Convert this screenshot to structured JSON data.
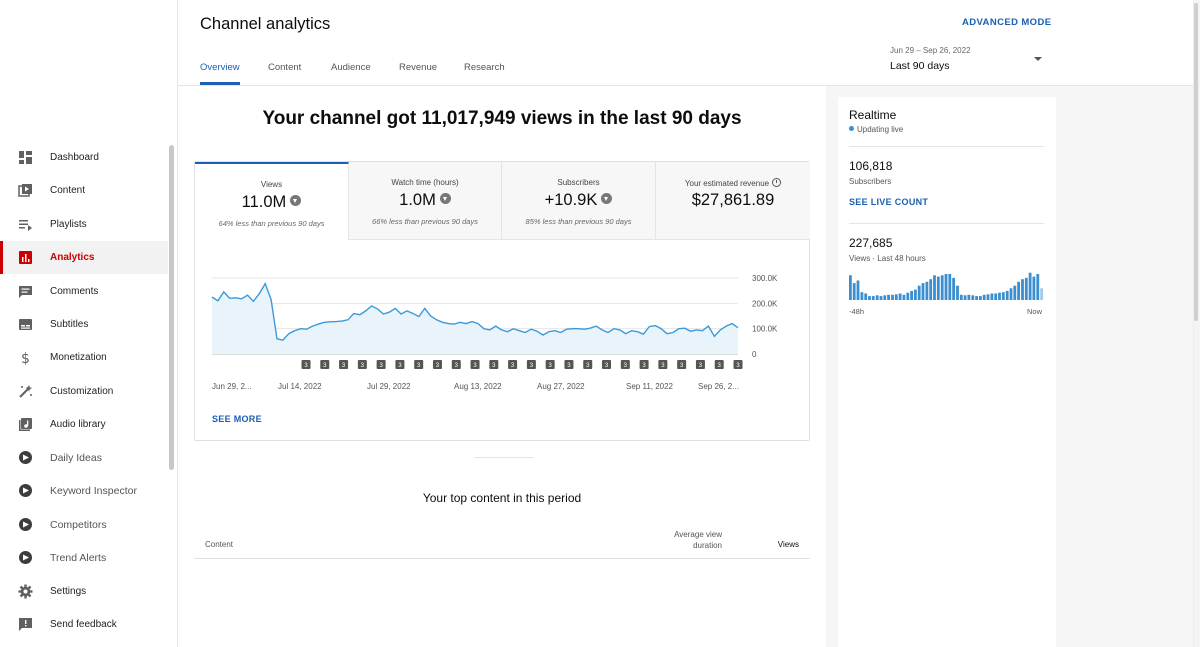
{
  "sidebar": {
    "items": [
      {
        "label": "Dashboard",
        "icon": "dashboard-icon"
      },
      {
        "label": "Content",
        "icon": "content-icon"
      },
      {
        "label": "Playlists",
        "icon": "playlists-icon"
      },
      {
        "label": "Analytics",
        "icon": "analytics-icon",
        "active": true
      },
      {
        "label": "Comments",
        "icon": "comments-icon"
      },
      {
        "label": "Subtitles",
        "icon": "subtitles-icon"
      },
      {
        "label": "Monetization",
        "icon": "monetization-icon"
      },
      {
        "label": "Customization",
        "icon": "customization-icon"
      },
      {
        "label": "Audio library",
        "icon": "audio-library-icon"
      },
      {
        "label": "Daily Ideas",
        "icon": "extension-logo-icon",
        "ext": true
      },
      {
        "label": "Keyword Inspector",
        "icon": "extension-logo-icon",
        "ext": true
      },
      {
        "label": "Competitors",
        "icon": "extension-logo-icon",
        "ext": true
      },
      {
        "label": "Trend Alerts",
        "icon": "extension-logo-icon",
        "ext": true
      },
      {
        "label": "Settings",
        "icon": "gear-icon"
      },
      {
        "label": "Send feedback",
        "icon": "feedback-icon"
      }
    ]
  },
  "header": {
    "title": "Channel analytics",
    "advanced_mode": "ADVANCED MODE",
    "tabs": [
      {
        "label": "Overview",
        "active": true
      },
      {
        "label": "Content"
      },
      {
        "label": "Audience"
      },
      {
        "label": "Revenue"
      },
      {
        "label": "Research"
      }
    ],
    "date_range": "Jun 29 – Sep 26, 2022",
    "date_preset": "Last 90 days"
  },
  "headline": "Your channel got 11,017,949 views in the last 90 days",
  "metrics": [
    {
      "label": "Views",
      "value": "11.0M",
      "sub": "64% less than previous 90 days",
      "trend": "down"
    },
    {
      "label": "Watch time (hours)",
      "value": "1.0M",
      "sub": "66% less than previous 90 days",
      "trend": "down"
    },
    {
      "label": "Subscribers",
      "value": "+10.9K",
      "sub": "85% less than previous 90 days",
      "trend": "down"
    },
    {
      "label": "Your estimated revenue",
      "value": "$27,861.89",
      "sub": "",
      "trend": "none"
    }
  ],
  "chart_data": {
    "type": "area",
    "ylim": [
      0,
      300000
    ],
    "y_ticks": [
      "0",
      "100.0K",
      "200.0K",
      "300.0K"
    ],
    "x_ticks": [
      "Jun 29, 2...",
      "Jul 14, 2022",
      "Jul 29, 2022",
      "Aug 13, 2022",
      "Aug 27, 2022",
      "Sep 11, 2022",
      "Sep 26, 2..."
    ],
    "series": [
      {
        "values": [
          225000,
          210000,
          245000,
          220000,
          222000,
          218000,
          232000,
          208000,
          238000,
          278000,
          215000,
          60000,
          55000,
          80000,
          92000,
          100000,
          98000,
          110000,
          118000,
          125000,
          127000,
          128000,
          130000,
          135000,
          160000,
          155000,
          170000,
          190000,
          178000,
          158000,
          165000,
          180000,
          158000,
          170000,
          160000,
          148000,
          180000,
          150000,
          135000,
          125000,
          120000,
          118000,
          125000,
          120000,
          128000,
          120000,
          100000,
          95000,
          110000,
          95000,
          88000,
          100000,
          92000,
          85000,
          98000,
          90000,
          75000,
          88000,
          92000,
          85000,
          98000,
          100000,
          100000,
          98000,
          102000,
          110000,
          95000,
          85000,
          100000,
          95000,
          80000,
          92000,
          88000,
          78000,
          108000,
          112000,
          100000,
          80000,
          85000,
          100000,
          102000,
          90000,
          95000,
          92000,
          110000,
          70000,
          95000,
          110000,
          120000,
          104000
        ]
      }
    ],
    "markers": {
      "label": "3",
      "count": 24
    }
  },
  "see_more": "SEE MORE",
  "top_content": {
    "title": "Your top content in this period",
    "col_content": "Content",
    "col_avd": "Average view duration",
    "col_views": "Views"
  },
  "realtime": {
    "title": "Realtime",
    "live": "Updating live",
    "subs_value": "106,818",
    "subs_label": "Subscribers",
    "see_live": "SEE LIVE COUNT",
    "views_value": "227,685",
    "views_label": "Views · Last 48 hours",
    "left_label": "-48h",
    "right_label": "Now",
    "bars": [
      0.95,
      0.65,
      0.75,
      0.3,
      0.25,
      0.15,
      0.15,
      0.18,
      0.15,
      0.18,
      0.2,
      0.2,
      0.22,
      0.25,
      0.2,
      0.28,
      0.35,
      0.4,
      0.55,
      0.65,
      0.7,
      0.8,
      0.95,
      0.9,
      0.95,
      1.0,
      1.0,
      0.85,
      0.55,
      0.2,
      0.18,
      0.2,
      0.18,
      0.15,
      0.15,
      0.2,
      0.22,
      0.25,
      0.25,
      0.28,
      0.3,
      0.35,
      0.45,
      0.55,
      0.7,
      0.8,
      0.85,
      1.05,
      0.9,
      1.0,
      0.45
    ]
  }
}
